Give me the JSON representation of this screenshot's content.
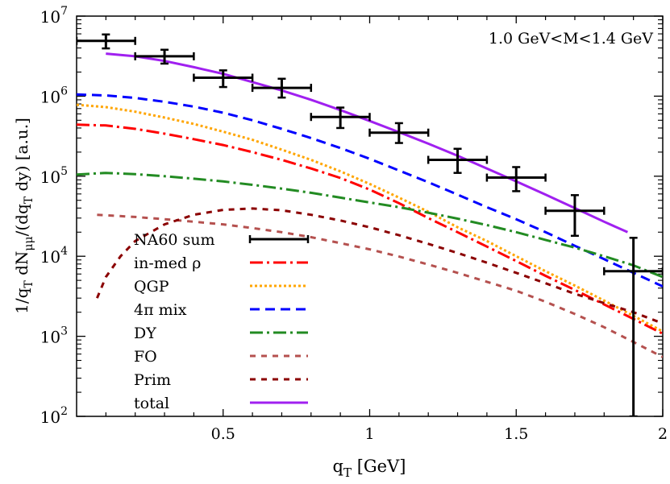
{
  "chart_data": {
    "type": "line",
    "title": "",
    "annotation": "1.0 GeV<M<1.4 GeV",
    "xlabel": {
      "main": "q",
      "sub": "T",
      "rest": " [GeV]"
    },
    "ylabel": {
      "p1": "1/q",
      "p1sub": "T",
      "p2": " dN",
      "p2sub": "μμ",
      "p3": "/(dq",
      "p3sub": "T",
      "p4": " dy) [a.u.]"
    },
    "xlim": [
      0,
      2
    ],
    "ylim": [
      100,
      10000000
    ],
    "yscale": "log",
    "xticks": [
      {
        "value": 0.5,
        "label": "0.5"
      },
      {
        "value": 1,
        "label": "1"
      },
      {
        "value": 1.5,
        "label": "1.5"
      },
      {
        "value": 2,
        "label": "2"
      }
    ],
    "yticks": [
      {
        "value": 100,
        "base": "10",
        "exp": "2"
      },
      {
        "value": 1000,
        "base": "10",
        "exp": "3"
      },
      {
        "value": 10000,
        "base": "10",
        "exp": "4"
      },
      {
        "value": 100000,
        "base": "10",
        "exp": "5"
      },
      {
        "value": 1000000,
        "base": "10",
        "exp": "6"
      },
      {
        "value": 10000000,
        "base": "10",
        "exp": "7"
      }
    ],
    "data_points": {
      "name": "NA60 sum",
      "color": "#000000",
      "points": [
        {
          "x": 0.1,
          "y": 4900000,
          "xlo": 0.0,
          "xhi": 0.2,
          "ylo": 3950000,
          "yhi": 5900000
        },
        {
          "x": 0.3,
          "y": 3150000,
          "xlo": 0.2,
          "xhi": 0.4,
          "ylo": 2550000,
          "yhi": 3800000
        },
        {
          "x": 0.5,
          "y": 1700000,
          "xlo": 0.4,
          "xhi": 0.6,
          "ylo": 1300000,
          "yhi": 2100000
        },
        {
          "x": 0.7,
          "y": 1270000,
          "xlo": 0.6,
          "xhi": 0.8,
          "ylo": 960000,
          "yhi": 1650000
        },
        {
          "x": 0.9,
          "y": 550000,
          "xlo": 0.8,
          "xhi": 1.0,
          "ylo": 400000,
          "yhi": 720000
        },
        {
          "x": 1.1,
          "y": 350000,
          "xlo": 1.0,
          "xhi": 1.2,
          "ylo": 260000,
          "yhi": 460000
        },
        {
          "x": 1.3,
          "y": 160000,
          "xlo": 1.2,
          "xhi": 1.4,
          "ylo": 110000,
          "yhi": 220000
        },
        {
          "x": 1.5,
          "y": 96000,
          "xlo": 1.4,
          "xhi": 1.6,
          "ylo": 65000,
          "yhi": 130000
        },
        {
          "x": 1.7,
          "y": 37000,
          "xlo": 1.6,
          "xhi": 1.8,
          "ylo": 18000,
          "yhi": 58000
        },
        {
          "x": 1.9,
          "y": 6500,
          "xlo": 1.8,
          "xhi": 2.0,
          "ylo": 100,
          "yhi": 17000
        }
      ]
    },
    "series": [
      {
        "name": "in-med ρ",
        "color": "#ff0000",
        "dash": "16 5 3 5",
        "x": [
          0,
          0.1,
          0.2,
          0.3,
          0.4,
          0.5,
          0.6,
          0.7,
          0.8,
          0.9,
          1.0,
          1.1,
          1.2,
          1.3,
          1.4,
          1.5,
          1.6,
          1.7,
          1.8,
          1.9,
          2.0
        ],
        "y": [
          440000,
          430000,
          390000,
          340000,
          290000,
          245000,
          200000,
          160000,
          125000,
          95000,
          68000,
          46000,
          30000,
          20000,
          13200,
          8700,
          5700,
          3800,
          2500,
          1650,
          1080
        ]
      },
      {
        "name": "QGP",
        "color": "#ffa500",
        "dash": "3 3",
        "x": [
          0,
          0.1,
          0.2,
          0.3,
          0.4,
          0.5,
          0.6,
          0.7,
          0.8,
          0.9,
          1.0,
          1.1,
          1.2,
          1.3,
          1.4,
          1.5,
          1.6,
          1.7,
          1.8,
          1.9,
          2.0
        ],
        "y": [
          780000,
          730000,
          640000,
          540000,
          450000,
          360000,
          285000,
          215000,
          160000,
          115000,
          80000,
          54000,
          36000,
          23000,
          15500,
          10000,
          6500,
          4300,
          2800,
          1800,
          1150
        ]
      },
      {
        "name": "4π mix",
        "color": "#0000ff",
        "dash": "12 7",
        "x": [
          0,
          0.1,
          0.2,
          0.3,
          0.4,
          0.5,
          0.6,
          0.7,
          0.8,
          0.9,
          1.0,
          1.1,
          1.2,
          1.3,
          1.4,
          1.5,
          1.6,
          1.7,
          1.8,
          1.9,
          2.0
        ],
        "y": [
          1050000,
          1020000,
          950000,
          850000,
          740000,
          620000,
          500000,
          390000,
          300000,
          225000,
          165000,
          118000,
          84000,
          59000,
          41000,
          29000,
          20000,
          13500,
          9200,
          6200,
          4200
        ]
      },
      {
        "name": "DY",
        "color": "#228b22",
        "dash": "16 5 3 5",
        "x": [
          0,
          0.1,
          0.2,
          0.3,
          0.4,
          0.5,
          0.6,
          0.7,
          0.8,
          0.9,
          1.0,
          1.1,
          1.2,
          1.3,
          1.4,
          1.5,
          1.6,
          1.7,
          1.8,
          1.9,
          2.0
        ],
        "y": [
          105000,
          110000,
          106000,
          100000,
          93000,
          86000,
          78000,
          70000,
          62000,
          54000,
          47000,
          41000,
          35000,
          29500,
          24500,
          20000,
          16000,
          12800,
          10000,
          7700,
          5500
        ]
      },
      {
        "name": "FO",
        "color": "#b5514f",
        "dash": "7 7",
        "x": [
          0.07,
          0.2,
          0.3,
          0.4,
          0.5,
          0.6,
          0.7,
          0.8,
          0.9,
          1.0,
          1.1,
          1.2,
          1.3,
          1.4,
          1.5,
          1.6,
          1.7,
          1.8,
          1.9,
          2.0
        ],
        "y": [
          33000,
          31000,
          29000,
          27000,
          25000,
          22500,
          20000,
          17300,
          14600,
          12200,
          9900,
          7900,
          6200,
          4800,
          3700,
          2700,
          1900,
          1300,
          850,
          550
        ]
      },
      {
        "name": "Prim",
        "color": "#8b0000",
        "dash": "7 7",
        "x": [
          0.07,
          0.1,
          0.15,
          0.2,
          0.3,
          0.4,
          0.5,
          0.6,
          0.7,
          0.8,
          0.9,
          1.0,
          1.1,
          1.2,
          1.3,
          1.4,
          1.5,
          1.6,
          1.7,
          1.8,
          1.9,
          2.0
        ],
        "y": [
          3000,
          5500,
          10000,
          15500,
          25000,
          33000,
          38000,
          39500,
          37500,
          33000,
          28000,
          23000,
          18300,
          14300,
          11000,
          8300,
          6200,
          4600,
          3400,
          2600,
          2000,
          1450
        ]
      },
      {
        "name": "total",
        "color": "#a020f0",
        "dash": "",
        "x": [
          0.1,
          0.2,
          0.3,
          0.4,
          0.5,
          0.6,
          0.7,
          0.8,
          0.9,
          1.0,
          1.1,
          1.2,
          1.3,
          1.4,
          1.5,
          1.6,
          1.7,
          1.8,
          1.88
        ],
        "y": [
          3400000,
          3150000,
          2750000,
          2300000,
          1900000,
          1500000,
          1180000,
          900000,
          670000,
          490000,
          355000,
          255000,
          180000,
          125000,
          86000,
          59000,
          40000,
          27000,
          20000
        ]
      }
    ]
  }
}
